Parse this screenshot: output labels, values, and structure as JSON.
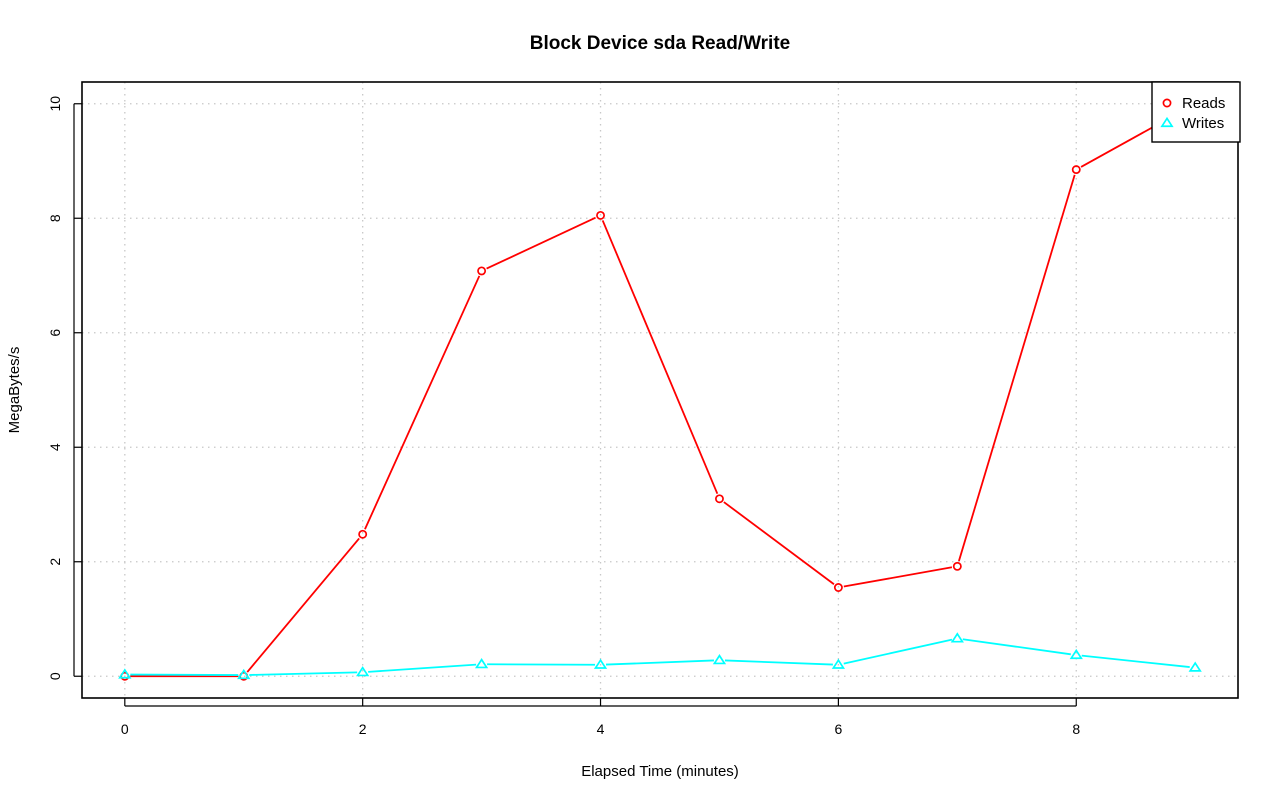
{
  "chart_data": {
    "type": "line",
    "title": "Block Device sda Read/Write",
    "xlabel": "Elapsed Time (minutes)",
    "ylabel": "MegaBytes/s",
    "xlim": [
      -0.36,
      9.36
    ],
    "ylim": [
      -0.38,
      10.38
    ],
    "x_ticks": [
      0,
      2,
      4,
      6,
      8
    ],
    "y_ticks": [
      0,
      2,
      4,
      6,
      8,
      10
    ],
    "grid": true,
    "legend_position": "top-right",
    "x": [
      0,
      1,
      2,
      3,
      4,
      5,
      6,
      7,
      8,
      9
    ],
    "series": [
      {
        "name": "Reads",
        "color": "#ff0000",
        "marker": "circle",
        "values": [
          0.0,
          0.0,
          2.48,
          7.08,
          8.05,
          3.1,
          1.55,
          1.92,
          8.85,
          10.0
        ]
      },
      {
        "name": "Writes",
        "color": "#00ffff",
        "marker": "triangle",
        "values": [
          0.03,
          0.02,
          0.07,
          0.21,
          0.2,
          0.28,
          0.2,
          0.66,
          0.37,
          0.15
        ]
      }
    ]
  }
}
